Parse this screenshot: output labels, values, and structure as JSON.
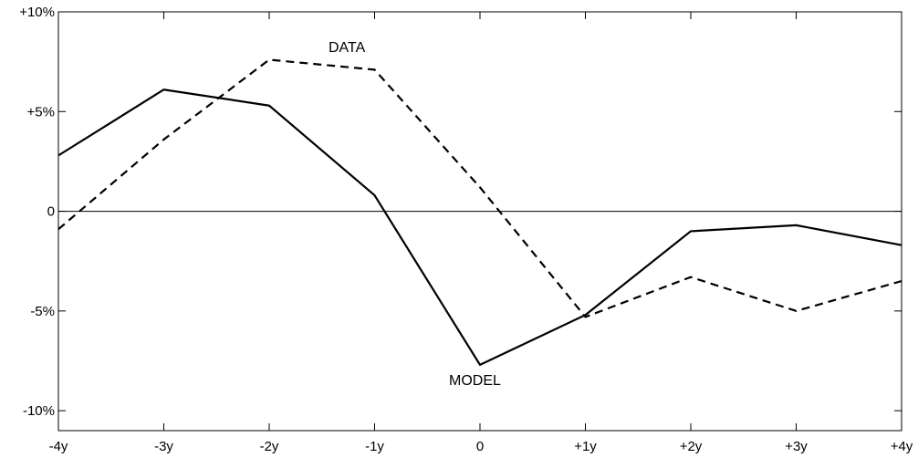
{
  "chart_data": {
    "type": "line",
    "title": "",
    "xlabel": "",
    "ylabel": "",
    "x": [
      -4,
      -3,
      -2,
      -1,
      0,
      1,
      2,
      3,
      4
    ],
    "x_tick_labels": [
      "-4y",
      "-3y",
      "-2y",
      "-1y",
      "0",
      "+1y",
      "+2y",
      "+3y",
      "+4y"
    ],
    "y_ticks": [
      10,
      5,
      0,
      -5,
      -10
    ],
    "y_tick_labels": [
      "+10%",
      "+5%",
      "0",
      "-5%",
      "-10%"
    ],
    "xlim": [
      -4,
      4
    ],
    "ylim": [
      -11,
      10
    ],
    "grid": false,
    "zero_line": true,
    "series": [
      {
        "name": "MODEL",
        "style": "solid",
        "color": "#000000",
        "values": [
          2.8,
          6.1,
          5.3,
          0.8,
          -7.7,
          -5.2,
          -1.0,
          -0.7,
          -1.7
        ]
      },
      {
        "name": "DATA",
        "style": "dashed",
        "color": "#000000",
        "values": [
          -0.9,
          3.6,
          7.6,
          7.1,
          1.2,
          -5.3,
          -3.3,
          -5.0,
          -3.5
        ]
      }
    ],
    "annotations": [
      {
        "text": "DATA",
        "series": "DATA"
      },
      {
        "text": "MODEL",
        "series": "MODEL"
      }
    ]
  }
}
